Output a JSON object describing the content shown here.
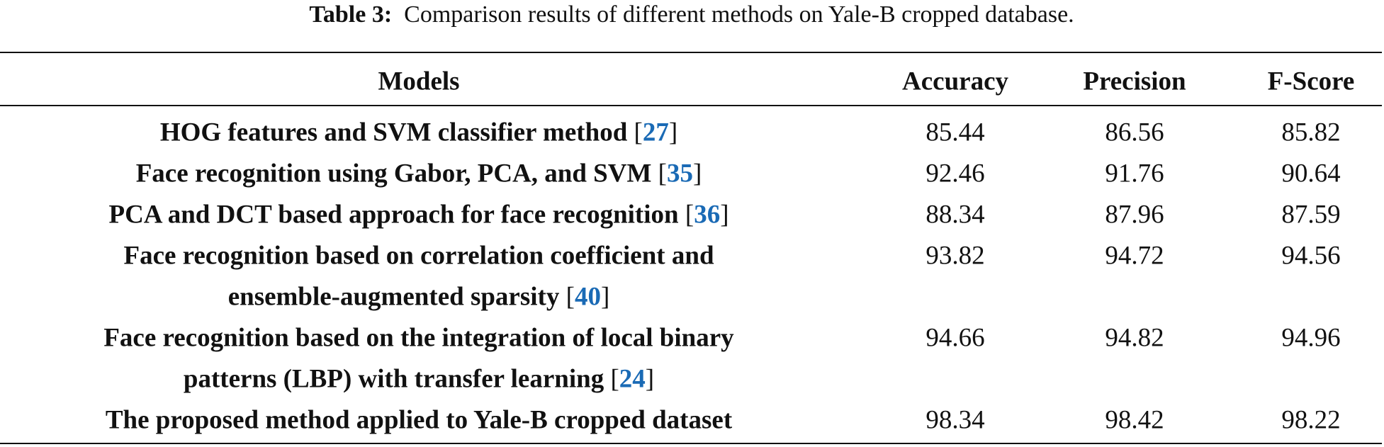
{
  "caption": {
    "label": "Table 3:",
    "text": "Comparison results of different methods on Yale-B cropped database."
  },
  "table": {
    "header": [
      "Models",
      "Accuracy",
      "Precision",
      "F-Score"
    ],
    "rows": [
      {
        "model": [
          "HOG features and SVM classifier method"
        ],
        "ref": [
          "[",
          "27",
          "]"
        ],
        "values": [
          85.44,
          86.56,
          85.82
        ]
      },
      {
        "model": [
          "Face recognition using Gabor, PCA, and SVM"
        ],
        "ref": [
          "[",
          "35",
          "]"
        ],
        "values": [
          92.46,
          91.76,
          90.64
        ]
      },
      {
        "model": [
          "PCA and DCT based approach for face recognition"
        ],
        "ref": [
          "[",
          "36",
          "]"
        ],
        "values": [
          88.34,
          87.96,
          87.59
        ]
      },
      {
        "model": [
          "Face recognition based on correlation coefficient and",
          "ensemble-augmented sparsity"
        ],
        "ref": [
          "[",
          "40",
          "]"
        ],
        "values": [
          93.82,
          94.72,
          94.56
        ]
      },
      {
        "model": [
          "Face recognition based on the integration of local binary",
          "patterns (LBP) with transfer learning"
        ],
        "ref": [
          "[",
          "24",
          "]"
        ],
        "values": [
          94.66,
          94.82,
          94.96
        ]
      },
      {
        "model": [
          "The proposed method applied to Yale-B cropped dataset"
        ],
        "ref": null,
        "values": [
          98.34,
          98.42,
          98.22
        ]
      }
    ]
  }
}
